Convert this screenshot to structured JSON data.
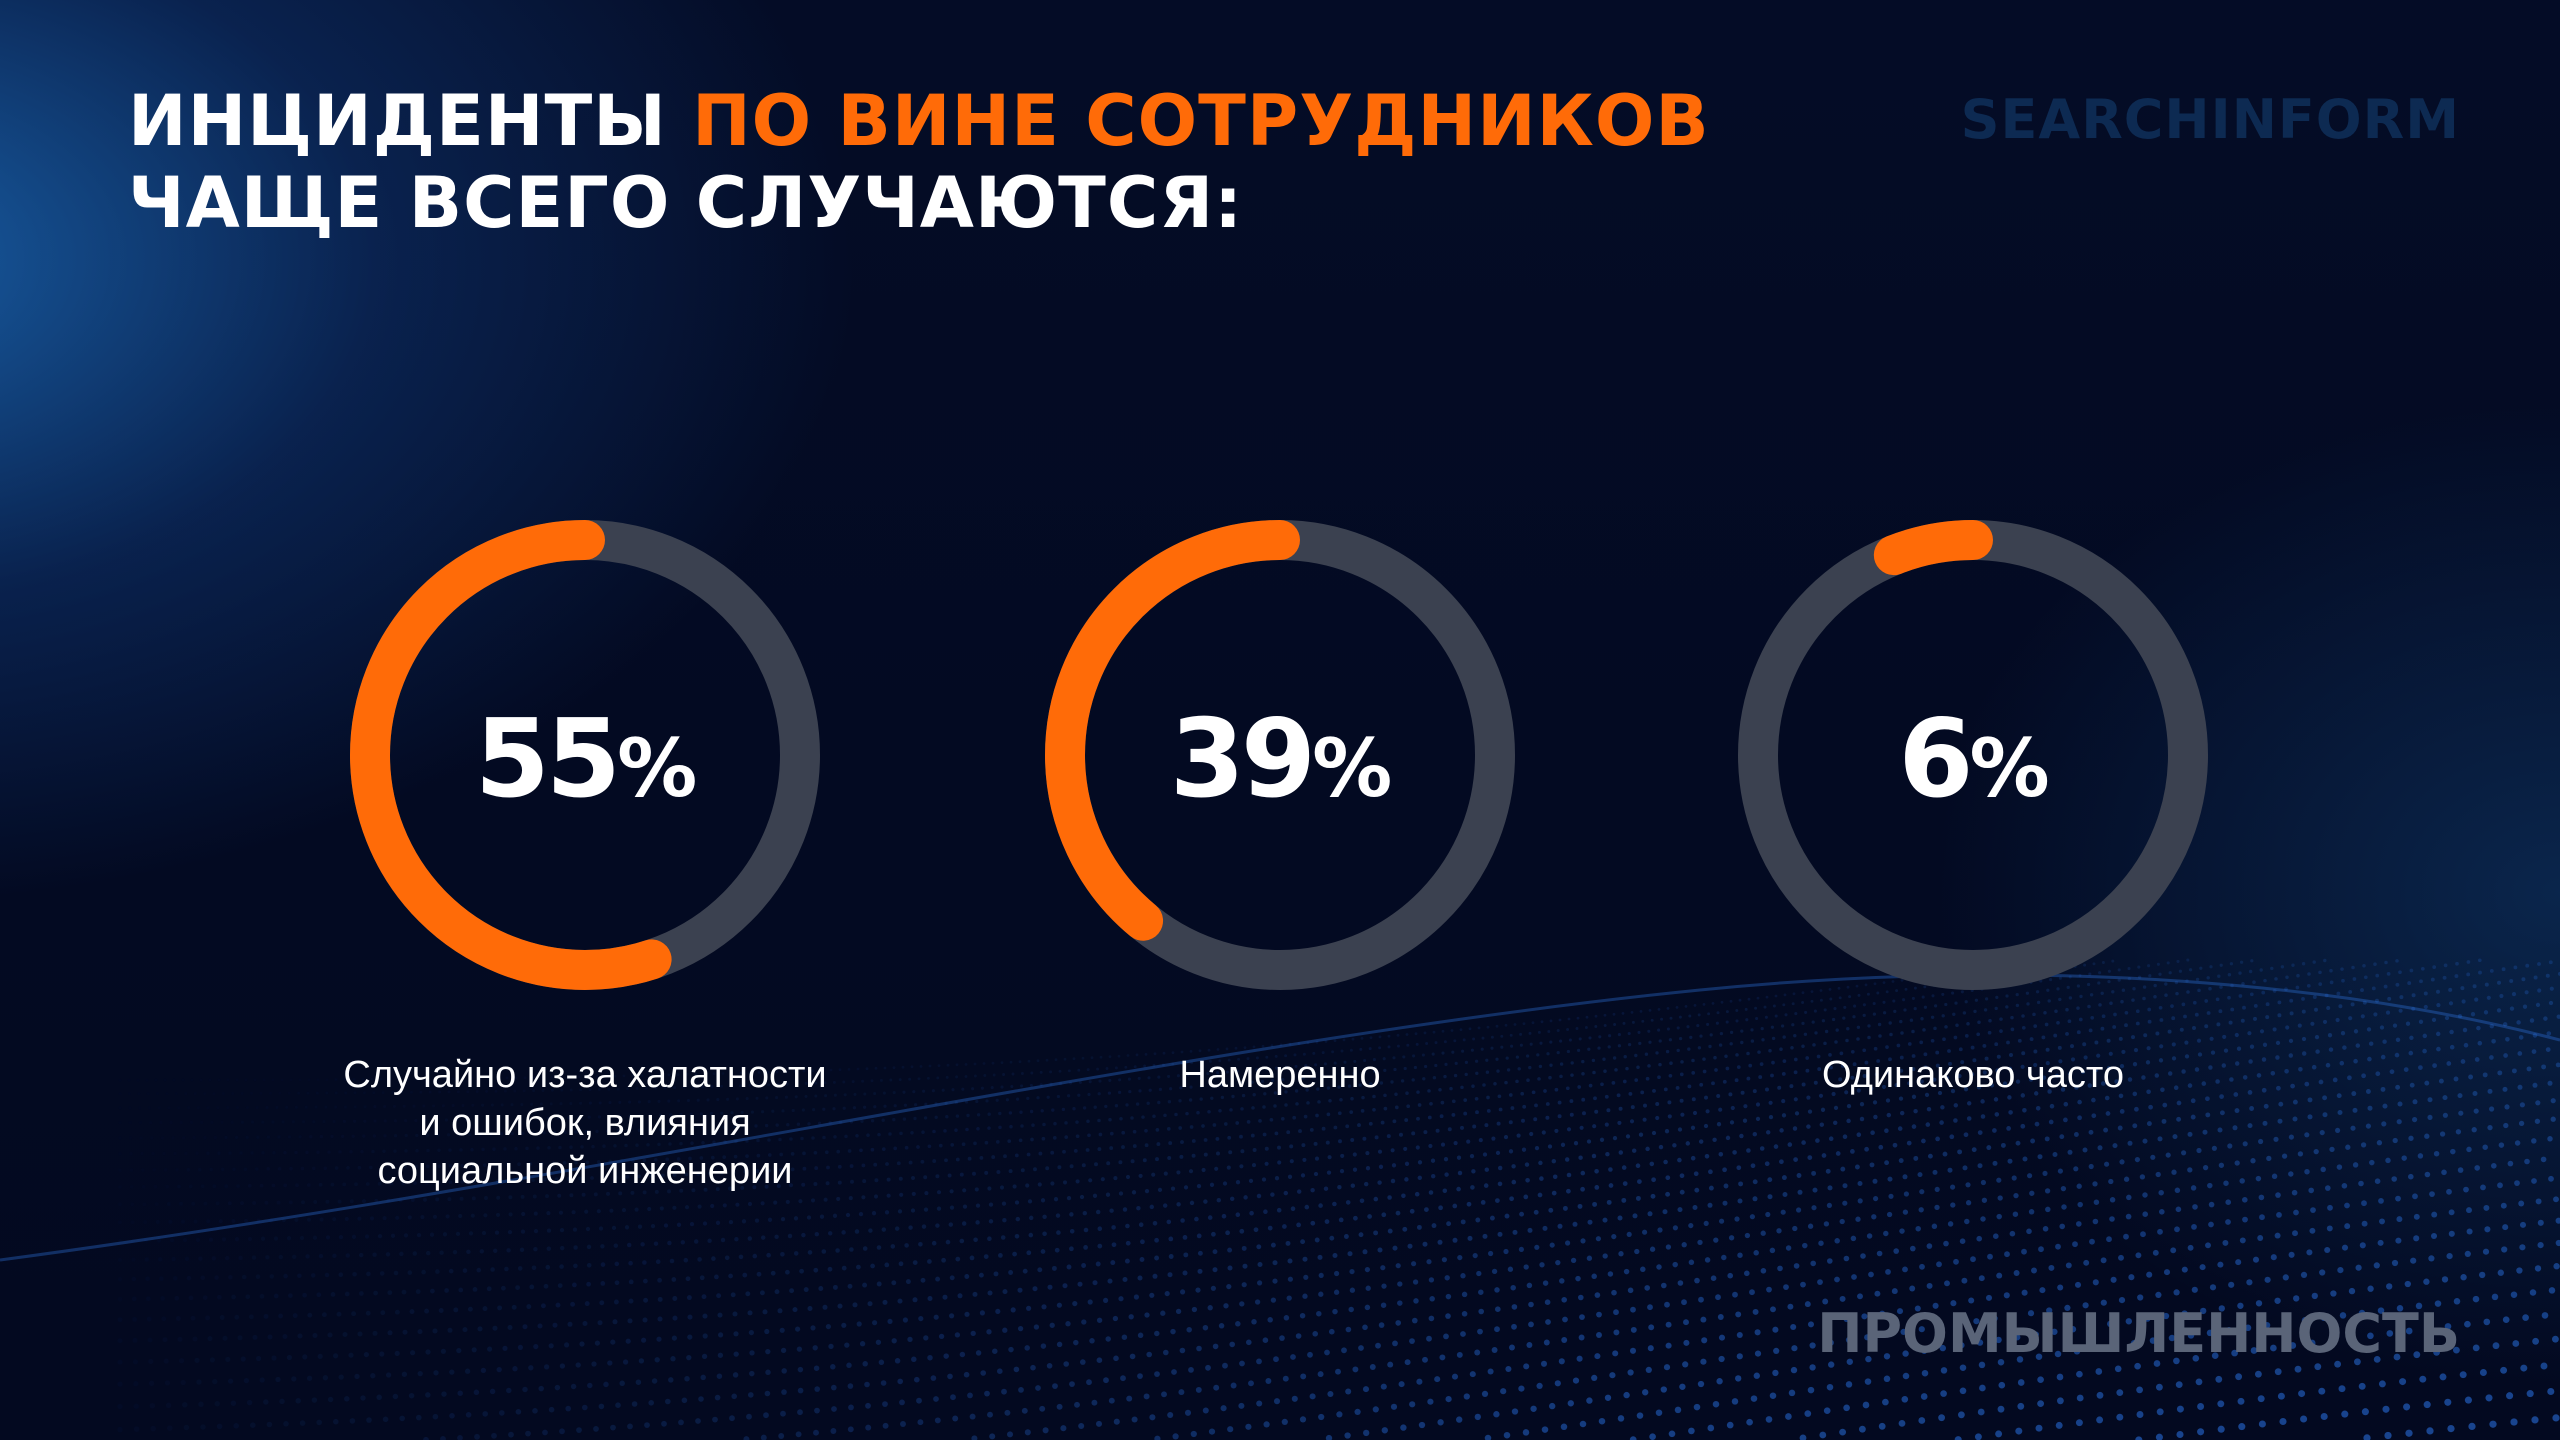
{
  "title": {
    "line1_prefix": "ИНЦИДЕНТЫ ",
    "line1_accent": "ПО ВИНЕ СОТРУДНИКОВ",
    "line2": "ЧАЩЕ ВСЕГО СЛУЧАЮТСЯ:"
  },
  "logo": "SEARCHINFORM",
  "sector": "ПРОМЫШЛЕННОСТЬ",
  "colors": {
    "accent": "#ff6b08",
    "track": "#3b4150",
    "background": "#030a22"
  },
  "chart_data": {
    "type": "pie",
    "variant": "donut",
    "unit": "%",
    "items": [
      {
        "value": 55,
        "label": "Случайно из-за халатности\nи ошибок, влияния\nсоциальной инженерии"
      },
      {
        "value": 39,
        "label": "Намеренно"
      },
      {
        "value": 6,
        "label": "Одинаково часто"
      }
    ]
  }
}
